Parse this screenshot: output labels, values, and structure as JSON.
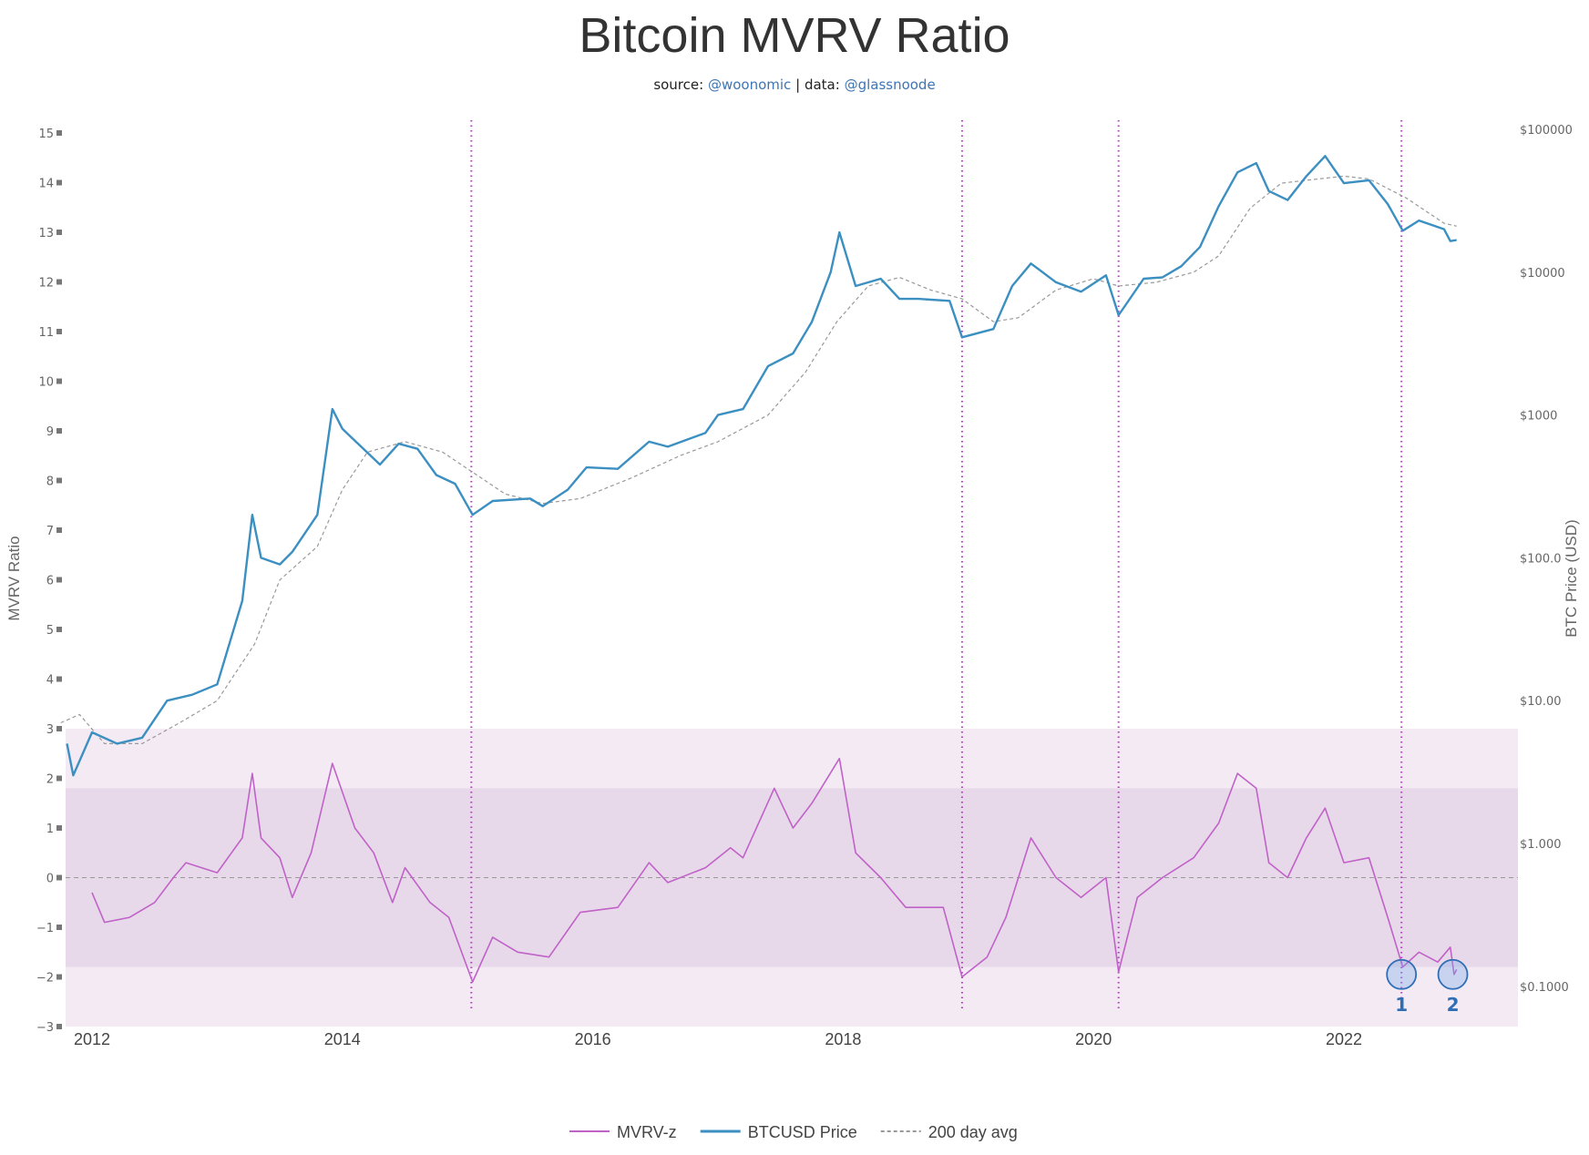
{
  "chart_data": {
    "type": "line",
    "title": "Bitcoin MVRV Ratio",
    "subtitle": {
      "source_label": "source:",
      "source": "@woonomic",
      "sep": "|",
      "data_label": "data:",
      "data": "@glassnoode"
    },
    "xlabel": "",
    "ylabel_left": "MVRV Ratio",
    "ylabel_right": "BTC Price (USD)",
    "xlim": [
      2011.78,
      2023.4
    ],
    "x_ticks": [
      "2012",
      "2014",
      "2016",
      "2018",
      "2020",
      "2022"
    ],
    "ylim_left": [
      -3,
      15
    ],
    "y_ticks_left": [
      "15",
      "14",
      "13",
      "12",
      "11",
      "10",
      "9",
      "8",
      "7",
      "6",
      "5",
      "4",
      "3",
      "2",
      "1",
      "0",
      "−1",
      "−2",
      "−3"
    ],
    "y_right_scale": "log",
    "ylim_right": [
      0.1,
      100000
    ],
    "y_ticks_right": [
      "$100000",
      "$10000",
      "$1000",
      "$100.0",
      "$10.00",
      "$1.000",
      "$0.1000"
    ],
    "grid": false,
    "legend_position": "bottom-center",
    "bands_left_axis": [
      {
        "from": -3,
        "to": 3,
        "color": "#f3eaf4"
      },
      {
        "from": -1.8,
        "to": 1.8,
        "color": "#e8d9ea"
      }
    ],
    "zero_line": 0,
    "vertical_markers_year": [
      2015.03,
      2018.95,
      2020.2,
      2022.46
    ],
    "marker_color": "#b43cc0",
    "annotations": [
      {
        "label": "1",
        "x": 2022.46,
        "y": -1.95
      },
      {
        "label": "2",
        "x": 2022.87,
        "y": -1.95
      }
    ],
    "series": [
      {
        "name": "MVRV-z",
        "axis": "left",
        "color": "#c062c8",
        "x": [
          2012.0,
          2012.1,
          2012.3,
          2012.5,
          2012.65,
          2012.75,
          2013.0,
          2013.2,
          2013.28,
          2013.35,
          2013.5,
          2013.6,
          2013.75,
          2013.92,
          2014.1,
          2014.25,
          2014.4,
          2014.5,
          2014.7,
          2014.85,
          2015.04,
          2015.2,
          2015.4,
          2015.65,
          2015.9,
          2016.2,
          2016.45,
          2016.6,
          2016.9,
          2017.1,
          2017.2,
          2017.45,
          2017.6,
          2017.75,
          2017.97,
          2018.1,
          2018.3,
          2018.5,
          2018.8,
          2018.95,
          2019.15,
          2019.3,
          2019.5,
          2019.7,
          2019.9,
          2020.1,
          2020.2,
          2020.35,
          2020.55,
          2020.8,
          2021.0,
          2021.15,
          2021.3,
          2021.4,
          2021.55,
          2021.7,
          2021.85,
          2022.0,
          2022.2,
          2022.35,
          2022.47,
          2022.6,
          2022.75,
          2022.85,
          2022.88,
          2022.9
        ],
        "y": [
          -0.3,
          -0.9,
          -0.8,
          -0.5,
          0,
          0.3,
          0.1,
          0.8,
          2.1,
          0.8,
          0.4,
          -0.4,
          0.5,
          2.3,
          1.0,
          0.5,
          -0.5,
          0.2,
          -0.5,
          -0.8,
          -2.1,
          -1.2,
          -1.5,
          -1.6,
          -0.7,
          -0.6,
          0.3,
          -0.1,
          0.2,
          0.6,
          0.4,
          1.8,
          1.0,
          1.5,
          2.4,
          0.5,
          0.0,
          -0.6,
          -0.6,
          -2.0,
          -1.6,
          -0.8,
          0.8,
          0.0,
          -0.4,
          0.0,
          -1.9,
          -0.4,
          0.0,
          0.4,
          1.1,
          2.1,
          1.8,
          0.3,
          0.0,
          0.8,
          1.4,
          0.3,
          0.4,
          -0.8,
          -1.8,
          -1.5,
          -1.7,
          -1.4,
          -1.95,
          -1.85
        ]
      },
      {
        "name": "BTCUSD Price",
        "axis": "right",
        "color": "#3b8fc1",
        "x": [
          2011.8,
          2011.85,
          2012.0,
          2012.2,
          2012.4,
          2012.6,
          2012.8,
          2013.0,
          2013.2,
          2013.28,
          2013.35,
          2013.5,
          2013.6,
          2013.8,
          2013.92,
          2014.0,
          2014.15,
          2014.3,
          2014.45,
          2014.6,
          2014.75,
          2014.9,
          2015.04,
          2015.2,
          2015.5,
          2015.6,
          2015.8,
          2015.95,
          2016.2,
          2016.45,
          2016.6,
          2016.9,
          2017.0,
          2017.2,
          2017.4,
          2017.6,
          2017.75,
          2017.9,
          2017.97,
          2018.1,
          2018.3,
          2018.45,
          2018.6,
          2018.85,
          2018.95,
          2019.2,
          2019.35,
          2019.5,
          2019.7,
          2019.9,
          2020.1,
          2020.2,
          2020.4,
          2020.55,
          2020.7,
          2020.85,
          2021.0,
          2021.15,
          2021.3,
          2021.4,
          2021.55,
          2021.7,
          2021.85,
          2022.0,
          2022.2,
          2022.35,
          2022.47,
          2022.6,
          2022.8,
          2022.85,
          2022.9
        ],
        "y": [
          5,
          3,
          6,
          5,
          5.5,
          10,
          11,
          13,
          50,
          200,
          100,
          90,
          110,
          200,
          1100,
          800,
          600,
          450,
          630,
          580,
          380,
          330,
          200,
          250,
          260,
          230,
          300,
          430,
          420,
          650,
          600,
          750,
          1000,
          1100,
          2200,
          2700,
          4500,
          10000,
          19000,
          8000,
          9000,
          6500,
          6500,
          6300,
          3500,
          4000,
          8000,
          11500,
          8500,
          7300,
          9500,
          5000,
          9000,
          9200,
          11000,
          15000,
          29000,
          50000,
          58000,
          37000,
          32000,
          47000,
          65000,
          42000,
          44000,
          30000,
          19500,
          23000,
          20000,
          16500,
          16800
        ]
      },
      {
        "name": "200 day avg",
        "axis": "right",
        "color": "#999999",
        "x": [
          2011.75,
          2011.9,
          2012.1,
          2012.4,
          2012.7,
          2013.0,
          2013.3,
          2013.5,
          2013.8,
          2014.0,
          2014.2,
          2014.5,
          2014.8,
          2015.0,
          2015.3,
          2015.6,
          2015.9,
          2016.3,
          2016.7,
          2017.0,
          2017.4,
          2017.7,
          2017.95,
          2018.2,
          2018.45,
          2018.7,
          2018.95,
          2019.2,
          2019.4,
          2019.7,
          2020.0,
          2020.2,
          2020.5,
          2020.8,
          2021.0,
          2021.25,
          2021.5,
          2021.8,
          2022.0,
          2022.2,
          2022.5,
          2022.8,
          2022.9
        ],
        "y": [
          7,
          8,
          5,
          5,
          7,
          10,
          25,
          70,
          120,
          300,
          550,
          650,
          550,
          420,
          280,
          240,
          260,
          360,
          520,
          650,
          1000,
          2000,
          4500,
          8000,
          9200,
          7500,
          6500,
          4500,
          4800,
          7500,
          9000,
          8000,
          8500,
          10000,
          13000,
          28000,
          42000,
          45000,
          47000,
          45000,
          33000,
          22000,
          21000
        ]
      }
    ]
  }
}
